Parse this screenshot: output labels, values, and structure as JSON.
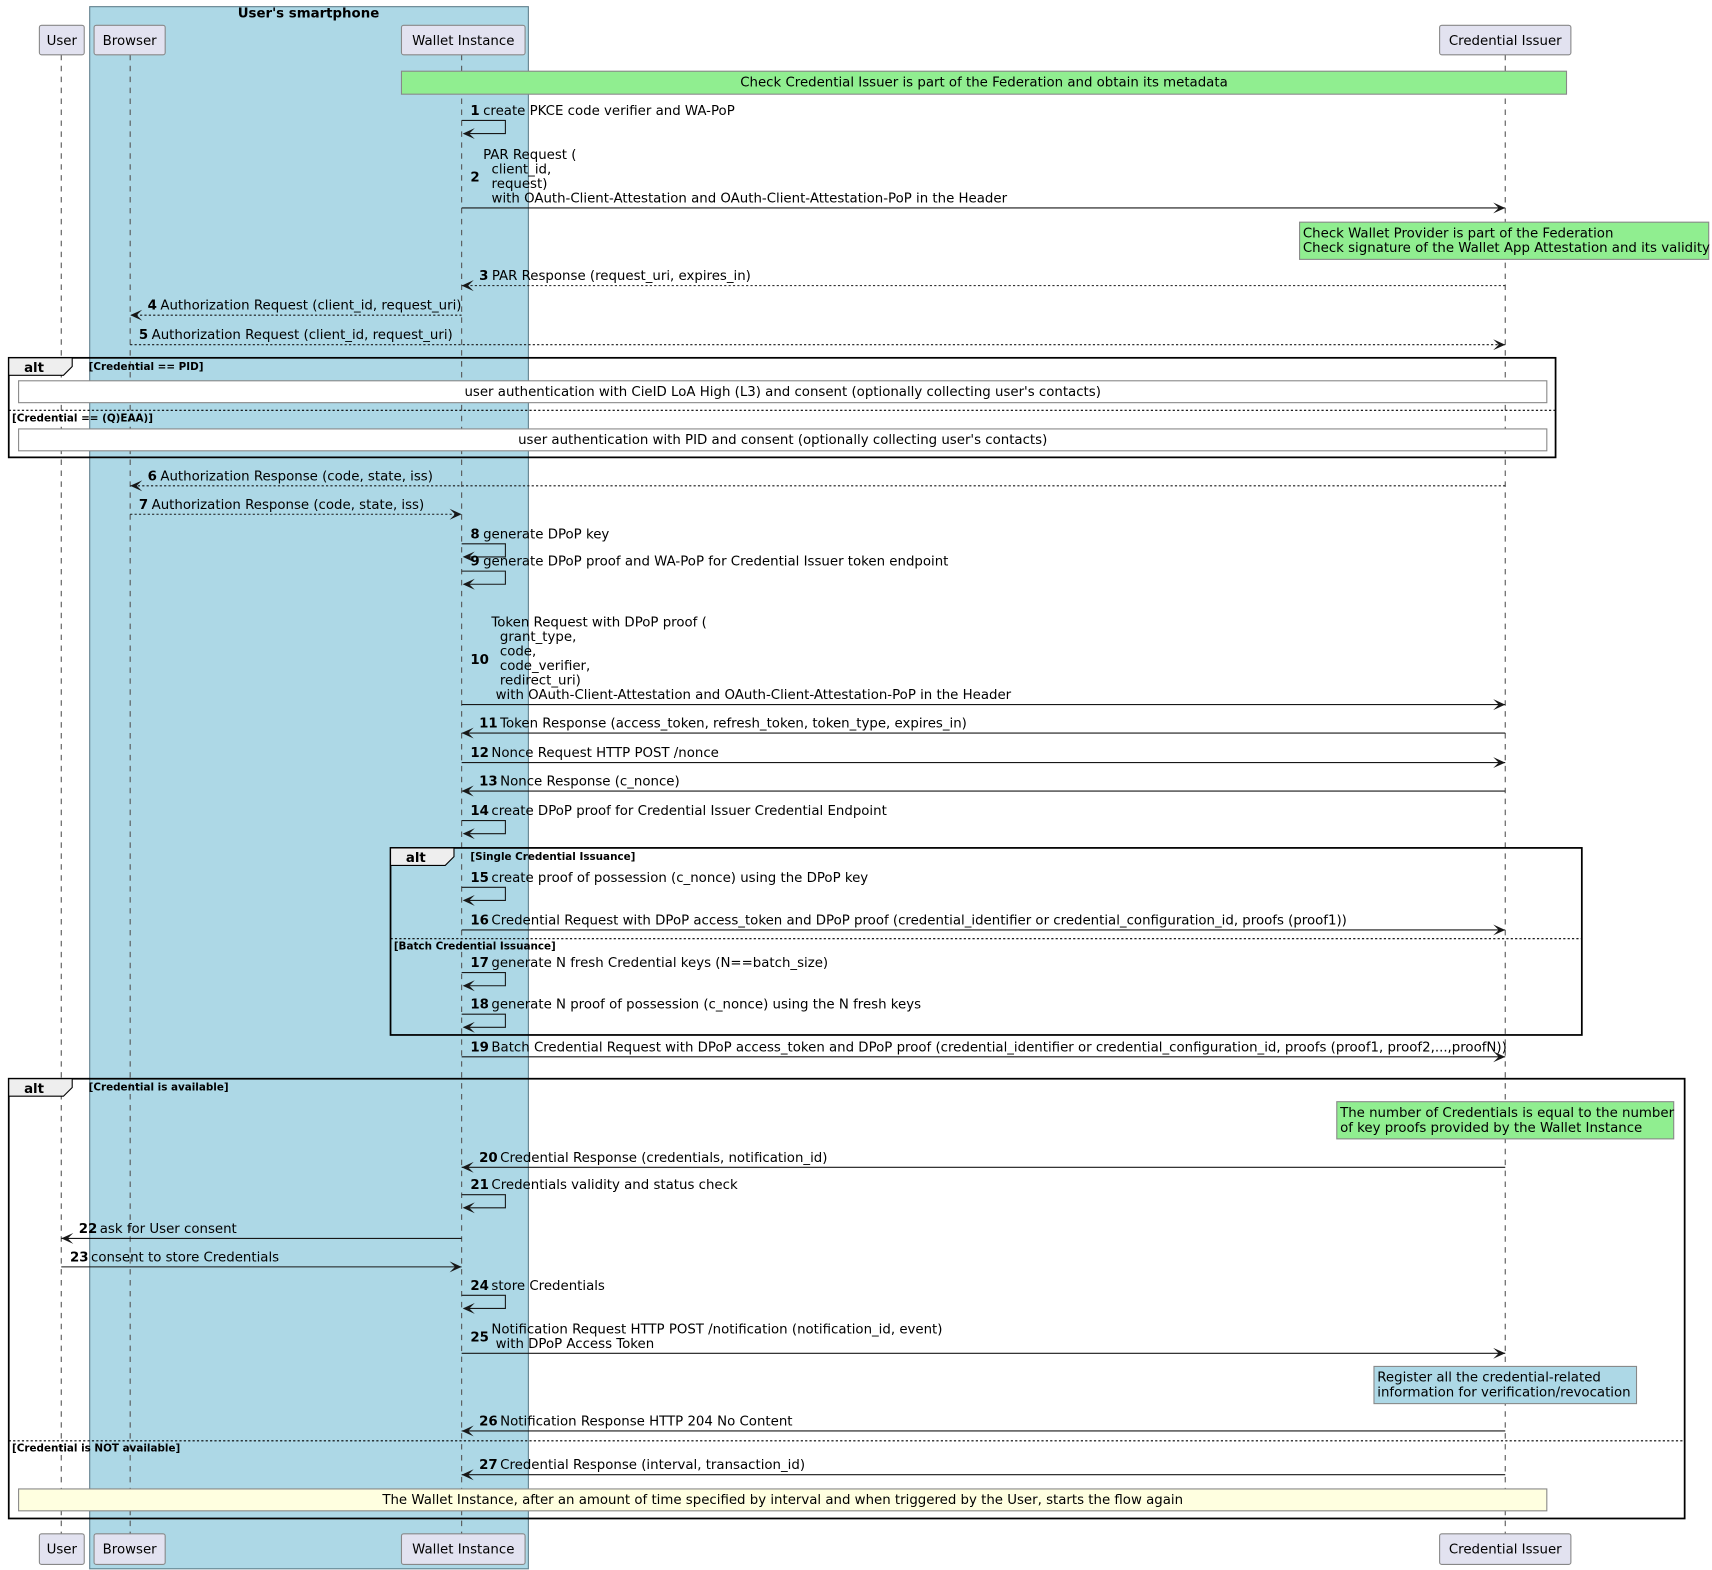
{
  "group": {
    "title": "User's smartphone",
    "color": "#add8e6"
  },
  "participants": [
    "User",
    "Browser",
    "Wallet Instance",
    "Credential Issuer"
  ],
  "colors": {
    "note_green": "#90ee90",
    "note_blue": "#add8e6",
    "note_yellow": "#ffffe0",
    "note_white": "#ffffff",
    "participant": "#e2e2f0"
  },
  "events": [
    {
      "kind": "note",
      "color": "note_green",
      "align": "center",
      "lines": [
        "Check Credential Issuer is part of the Federation and obtain its metadata"
      ]
    },
    {
      "kind": "msg",
      "n": "1",
      "from": 2,
      "to": 2,
      "dashed": false,
      "lines": [
        "create PKCE code verifier and WA-PoP"
      ]
    },
    {
      "kind": "msg",
      "n": "2",
      "from": 2,
      "to": 3,
      "dashed": false,
      "lines": [
        "PAR Request (",
        "  client_id,",
        "  request)",
        "  with OAuth-Client-Attestation and OAuth-Client-Attestation-PoP in the Header"
      ]
    },
    {
      "kind": "note",
      "color": "note_green",
      "align": "left",
      "lines": [
        "Check Wallet Provider is part of the Federation",
        "Check signature of the Wallet App Attestation and its validity"
      ]
    },
    {
      "kind": "msg",
      "n": "3",
      "from": 3,
      "to": 2,
      "dashed": true,
      "lines": [
        "PAR Response (request_uri, expires_in)"
      ]
    },
    {
      "kind": "msg",
      "n": "4",
      "from": 2,
      "to": 1,
      "dashed": true,
      "lines": [
        "Authorization Request (client_id, request_uri)"
      ]
    },
    {
      "kind": "msg",
      "n": "5",
      "from": 1,
      "to": 3,
      "dashed": true,
      "lines": [
        "Authorization Request (client_id, request_uri)"
      ]
    },
    {
      "kind": "alt",
      "label": "alt",
      "sections": [
        "[Credential == PID]",
        "[Credential == (Q)EAA)]"
      ]
    },
    {
      "kind": "note",
      "color": "note_white",
      "align": "center",
      "lines": [
        "user authentication with CieID LoA High (L3) and consent (optionally collecting user's contacts)"
      ]
    },
    {
      "kind": "note",
      "color": "note_white",
      "align": "center",
      "lines": [
        "user authentication with PID and consent (optionally collecting user's contacts)"
      ]
    },
    {
      "kind": "msg",
      "n": "6",
      "from": 3,
      "to": 1,
      "dashed": true,
      "lines": [
        "Authorization Response (code, state, iss)"
      ]
    },
    {
      "kind": "msg",
      "n": "7",
      "from": 1,
      "to": 2,
      "dashed": true,
      "lines": [
        "Authorization Response (code, state, iss)"
      ]
    },
    {
      "kind": "msg",
      "n": "8",
      "from": 2,
      "to": 2,
      "dashed": false,
      "lines": [
        "generate DPoP key"
      ]
    },
    {
      "kind": "msg",
      "n": "9",
      "from": 2,
      "to": 2,
      "dashed": false,
      "lines": [
        "generate DPoP proof and WA-PoP for Credential Issuer token endpoint"
      ]
    },
    {
      "kind": "msg",
      "n": "10",
      "from": 2,
      "to": 3,
      "dashed": false,
      "lines": [
        "Token Request with DPoP proof (",
        "  grant_type,",
        "  code,",
        "  code_verifier,",
        "  redirect_uri)",
        " with OAuth-Client-Attestation and OAuth-Client-Attestation-PoP in the Header"
      ]
    },
    {
      "kind": "msg",
      "n": "11",
      "from": 3,
      "to": 2,
      "dashed": false,
      "lines": [
        "Token Response (access_token, refresh_token, token_type, expires_in)"
      ]
    },
    {
      "kind": "msg",
      "n": "12",
      "from": 2,
      "to": 3,
      "dashed": false,
      "lines": [
        "Nonce Request HTTP POST /nonce"
      ]
    },
    {
      "kind": "msg",
      "n": "13",
      "from": 3,
      "to": 2,
      "dashed": false,
      "lines": [
        "Nonce Response (c_nonce)"
      ]
    },
    {
      "kind": "msg",
      "n": "14",
      "from": 2,
      "to": 2,
      "dashed": false,
      "lines": [
        "create DPoP proof for Credential Issuer Credential Endpoint"
      ]
    },
    {
      "kind": "alt",
      "label": "alt",
      "sections": [
        "[Single Credential Issuance]",
        "[Batch Credential Issuance]"
      ]
    },
    {
      "kind": "msg",
      "n": "15",
      "from": 2,
      "to": 2,
      "dashed": false,
      "lines": [
        "create proof of possession (c_nonce) using the DPoP key"
      ]
    },
    {
      "kind": "msg",
      "n": "16",
      "from": 2,
      "to": 3,
      "dashed": false,
      "lines": [
        "Credential Request with DPoP access_token and DPoP proof (credential_identifier or credential_configuration_id, proofs (proof1))"
      ]
    },
    {
      "kind": "msg",
      "n": "17",
      "from": 2,
      "to": 2,
      "dashed": false,
      "lines": [
        "generate N fresh Credential keys (N==batch_size)"
      ]
    },
    {
      "kind": "msg",
      "n": "18",
      "from": 2,
      "to": 2,
      "dashed": false,
      "lines": [
        "generate N proof of possession (c_nonce) using the N fresh keys"
      ]
    },
    {
      "kind": "msg",
      "n": "19",
      "from": 2,
      "to": 3,
      "dashed": false,
      "lines": [
        "Batch Credential Request with DPoP access_token and DPoP proof (credential_identifier or credential_configuration_id, proofs (proof1, proof2,...,proofN))"
      ]
    },
    {
      "kind": "alt",
      "label": "alt",
      "sections": [
        "[Credential is available]",
        "[Credential is NOT available]"
      ]
    },
    {
      "kind": "note",
      "color": "note_green",
      "align": "left",
      "lines": [
        "The number of Credentials is equal to the number",
        "of key proofs provided by the Wallet Instance"
      ]
    },
    {
      "kind": "msg",
      "n": "20",
      "from": 3,
      "to": 2,
      "dashed": false,
      "lines": [
        "Credential Response (credentials, notification_id)"
      ]
    },
    {
      "kind": "msg",
      "n": "21",
      "from": 2,
      "to": 2,
      "dashed": false,
      "lines": [
        "Credentials validity and status check"
      ]
    },
    {
      "kind": "msg",
      "n": "22",
      "from": 2,
      "to": 0,
      "dashed": false,
      "lines": [
        "ask for User consent"
      ]
    },
    {
      "kind": "msg",
      "n": "23",
      "from": 0,
      "to": 2,
      "dashed": false,
      "lines": [
        "consent to store Credentials"
      ]
    },
    {
      "kind": "msg",
      "n": "24",
      "from": 2,
      "to": 2,
      "dashed": false,
      "lines": [
        "store Credentials"
      ]
    },
    {
      "kind": "msg",
      "n": "25",
      "from": 2,
      "to": 3,
      "dashed": false,
      "lines": [
        "Notification Request HTTP POST /notification (notification_id, event)",
        " with DPoP Access Token"
      ]
    },
    {
      "kind": "note",
      "color": "note_blue",
      "align": "left",
      "lines": [
        "Register all the credential-related",
        "information for verification/revocation"
      ]
    },
    {
      "kind": "msg",
      "n": "26",
      "from": 3,
      "to": 2,
      "dashed": false,
      "lines": [
        "Notification Response HTTP 204 No Content"
      ]
    },
    {
      "kind": "msg",
      "n": "27",
      "from": 3,
      "to": 2,
      "dashed": false,
      "lines": [
        "Credential Response (interval, transaction_id)"
      ]
    },
    {
      "kind": "note",
      "color": "note_yellow",
      "align": "center",
      "lines": [
        "The Wallet Instance, after an amount of time specified by interval and when triggered by the User, starts the flow again"
      ]
    }
  ]
}
